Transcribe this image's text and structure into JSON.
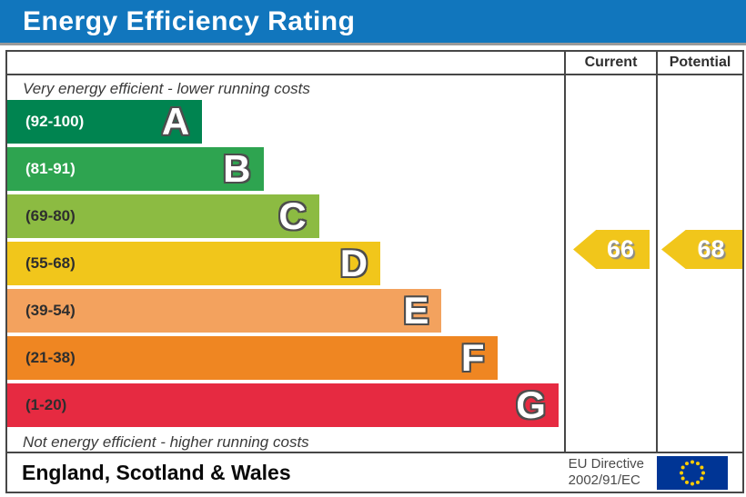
{
  "title": "Energy Efficiency Rating",
  "header": {
    "current_label": "Current",
    "potential_label": "Potential"
  },
  "captions": {
    "top": "Very energy efficient - lower running costs",
    "bottom": "Not energy efficient - higher running costs"
  },
  "bands": [
    {
      "letter": "A",
      "range": "(92-100)",
      "color": "#008450",
      "range_color": "#ffffff",
      "width_pct": 35
    },
    {
      "letter": "B",
      "range": "(81-91)",
      "color": "#2ea450",
      "range_color": "#ffffff",
      "width_pct": 46
    },
    {
      "letter": "C",
      "range": "(69-80)",
      "color": "#8cbb42",
      "range_color": "#2e2e2e",
      "width_pct": 56
    },
    {
      "letter": "D",
      "range": "(55-68)",
      "color": "#f1c61b",
      "range_color": "#2e2e2e",
      "width_pct": 67
    },
    {
      "letter": "E",
      "range": "(39-54)",
      "color": "#f3a25e",
      "range_color": "#2e2e2e",
      "width_pct": 78
    },
    {
      "letter": "F",
      "range": "(21-38)",
      "color": "#ef8622",
      "range_color": "#2e2e2e",
      "width_pct": 88
    },
    {
      "letter": "G",
      "range": "(1-20)",
      "color": "#e62a41",
      "range_color": "#2e2e2e",
      "width_pct": 99
    }
  ],
  "current": {
    "value": "66",
    "band": "D",
    "row": 3,
    "color": "#f1c61b"
  },
  "potential": {
    "value": "68",
    "band": "D",
    "row": 3,
    "color": "#f1c61b"
  },
  "footer": {
    "region": "England, Scotland & Wales",
    "directive_line1": "EU Directive",
    "directive_line2": "2002/91/EC"
  },
  "colors": {
    "title_bar": "#1176bd",
    "border": "#474747",
    "eu_flag_blue": "#003595",
    "eu_star_yellow": "#ffcc00"
  },
  "chart_data": {
    "type": "bar",
    "title": "Energy Efficiency Rating",
    "categories": [
      "A",
      "B",
      "C",
      "D",
      "E",
      "F",
      "G"
    ],
    "band_ranges": [
      "92-100",
      "81-91",
      "69-80",
      "55-68",
      "39-54",
      "21-38",
      "1-20"
    ],
    "band_colors": [
      "#008450",
      "#2ea450",
      "#8cbb42",
      "#f1c61b",
      "#f3a25e",
      "#ef8622",
      "#e62a41"
    ],
    "bar_width_pct": [
      35,
      46,
      56,
      67,
      78,
      88,
      99
    ],
    "series": [
      {
        "name": "Current",
        "value": 66,
        "band": "D"
      },
      {
        "name": "Potential",
        "value": 68,
        "band": "D"
      }
    ],
    "scale": [
      1,
      100
    ],
    "annotations": [
      "Very energy efficient - lower running costs",
      "Not energy efficient - higher running costs"
    ],
    "region": "England, Scotland & Wales",
    "directive": "EU Directive 2002/91/EC",
    "legend_position": "none",
    "grid": false
  }
}
